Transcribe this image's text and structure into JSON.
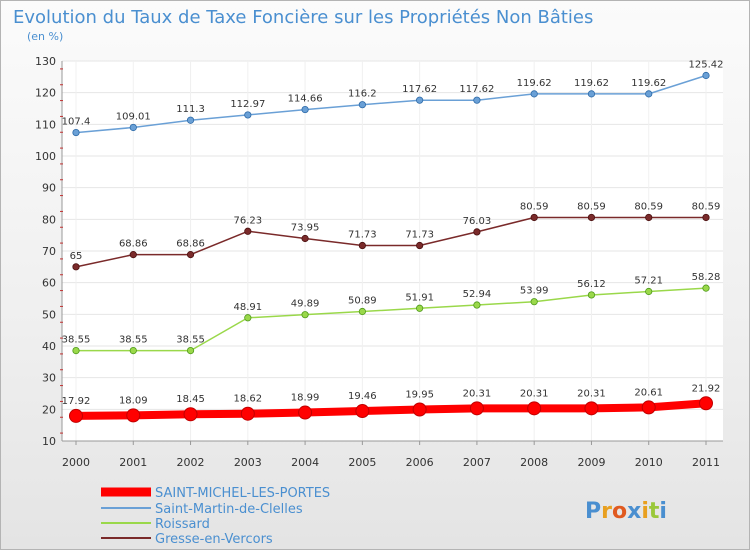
{
  "chart_data": {
    "type": "line",
    "title": "Evolution du Taux de Taxe Foncière sur les Propriétés Non Bâties",
    "subtitle": "(en %)",
    "x": [
      "2000",
      "2001",
      "2002",
      "2003",
      "2004",
      "2005",
      "2006",
      "2007",
      "2008",
      "2009",
      "2010",
      "2011"
    ],
    "ylim": [
      10,
      130
    ],
    "yticks": [
      10,
      20,
      30,
      40,
      50,
      60,
      70,
      80,
      90,
      100,
      110,
      120,
      130
    ],
    "grid": true,
    "legend_position": "bottom-left",
    "series": [
      {
        "name": "SAINT-MICHEL-LES-PORTES",
        "color": "#ff0000",
        "values": [
          17.92,
          18.09,
          18.45,
          18.62,
          18.99,
          19.46,
          19.95,
          20.31,
          20.31,
          20.31,
          20.61,
          21.92
        ],
        "labels": [
          "17.92",
          "18.09",
          "18.45",
          "18.62",
          "18.99",
          "19.46",
          "19.95",
          "20.31",
          "20.31",
          "20.31",
          "20.61",
          "21.92"
        ]
      },
      {
        "name": "Saint-Martin-de-Clelles",
        "color": "#6aa0d6",
        "values": [
          107.4,
          109.01,
          111.3,
          112.97,
          114.66,
          116.2,
          117.62,
          117.62,
          119.62,
          119.62,
          119.62,
          125.42
        ],
        "labels": [
          "107.4",
          "109.01",
          "111.3",
          "112.97",
          "114.66",
          "116.2",
          "117.62",
          "117.62",
          "119.62",
          "119.62",
          "119.62",
          "125.42"
        ]
      },
      {
        "name": "Roissard",
        "color": "#9ad84a",
        "values": [
          38.55,
          38.55,
          38.55,
          48.91,
          49.89,
          50.89,
          51.91,
          52.94,
          53.99,
          56.12,
          57.21,
          58.28
        ],
        "labels": [
          "38.55",
          "38.55",
          "38.55",
          "48.91",
          "49.89",
          "50.89",
          "51.91",
          "52.94",
          "53.99",
          "56.12",
          "57.21",
          "58.28"
        ]
      },
      {
        "name": "Gresse-en-Vercors",
        "color": "#7a2a2a",
        "values": [
          65,
          68.86,
          68.86,
          76.23,
          73.95,
          71.73,
          71.73,
          76.03,
          80.59,
          80.59,
          80.59,
          80.59
        ],
        "labels": [
          "65",
          "68.86",
          "68.86",
          "76.23",
          "73.95",
          "71.73",
          "71.73",
          "76.03",
          "80.59",
          "80.59",
          "80.59",
          "80.59"
        ]
      }
    ]
  },
  "logo": {
    "text": "Proxiti",
    "letter_colors": [
      "#4a8fd0",
      "#e8a020",
      "#e05a20",
      "#4a8fd0",
      "#e8a020",
      "#9ac83a",
      "#4a8fd0"
    ]
  }
}
